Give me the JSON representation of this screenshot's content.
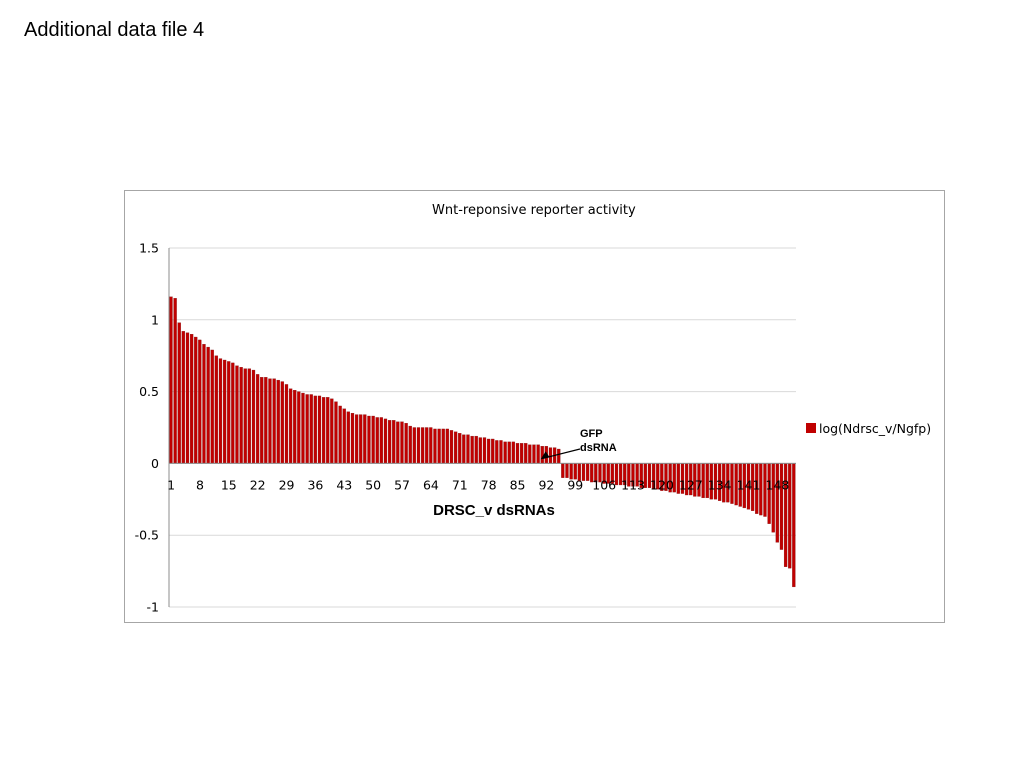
{
  "page": {
    "title": "Additional data file 4"
  },
  "colors": {
    "bar": "#c00000",
    "bar_edge": "#7f1a1a",
    "grid": "#d9d9d9",
    "frame": "#a6a6a6"
  },
  "chart_data": {
    "type": "bar",
    "title": "Wnt-reponsive reporter activity",
    "xlabel": "DRSC_v dsRNAs",
    "ylabel": "",
    "ylim": [
      -1,
      1.5
    ],
    "yticks": [
      1.5,
      1,
      0.5,
      0,
      -0.5,
      -1
    ],
    "grid": true,
    "legend_position": "right",
    "xtick_labels": [
      "1",
      "8",
      "15",
      "22",
      "29",
      "36",
      "43",
      "50",
      "57",
      "64",
      "71",
      "78",
      "85",
      "92",
      "99",
      "106",
      "113",
      "120",
      "127",
      "134",
      "141",
      "148"
    ],
    "annotation": {
      "text": [
        "GFP",
        "dsRNA"
      ],
      "target_index": 89
    },
    "series": [
      {
        "name": "log(Ndrsc_v/Ngfp)",
        "values": [
          1.16,
          1.15,
          0.98,
          0.92,
          0.91,
          0.9,
          0.88,
          0.86,
          0.83,
          0.81,
          0.79,
          0.75,
          0.73,
          0.72,
          0.71,
          0.7,
          0.68,
          0.67,
          0.66,
          0.66,
          0.65,
          0.62,
          0.6,
          0.6,
          0.59,
          0.59,
          0.58,
          0.57,
          0.55,
          0.52,
          0.51,
          0.5,
          0.49,
          0.48,
          0.48,
          0.47,
          0.47,
          0.46,
          0.46,
          0.45,
          0.43,
          0.4,
          0.38,
          0.36,
          0.35,
          0.34,
          0.34,
          0.34,
          0.33,
          0.33,
          0.32,
          0.32,
          0.31,
          0.3,
          0.3,
          0.29,
          0.29,
          0.28,
          0.26,
          0.25,
          0.25,
          0.25,
          0.25,
          0.25,
          0.24,
          0.24,
          0.24,
          0.24,
          0.23,
          0.22,
          0.21,
          0.2,
          0.2,
          0.19,
          0.19,
          0.18,
          0.18,
          0.17,
          0.17,
          0.16,
          0.16,
          0.15,
          0.15,
          0.15,
          0.14,
          0.14,
          0.14,
          0.13,
          0.13,
          0.13,
          0.12,
          0.12,
          0.11,
          0.11,
          0.1,
          -0.1,
          -0.1,
          -0.11,
          -0.11,
          -0.12,
          -0.12,
          -0.12,
          -0.13,
          -0.13,
          -0.13,
          -0.14,
          -0.14,
          -0.14,
          -0.15,
          -0.15,
          -0.15,
          -0.16,
          -0.16,
          -0.16,
          -0.17,
          -0.17,
          -0.17,
          -0.18,
          -0.18,
          -0.19,
          -0.19,
          -0.2,
          -0.2,
          -0.21,
          -0.21,
          -0.22,
          -0.22,
          -0.23,
          -0.23,
          -0.24,
          -0.24,
          -0.25,
          -0.25,
          -0.26,
          -0.27,
          -0.27,
          -0.28,
          -0.29,
          -0.3,
          -0.31,
          -0.32,
          -0.33,
          -0.35,
          -0.36,
          -0.37,
          -0.42,
          -0.48,
          -0.55,
          -0.6,
          -0.72,
          -0.73,
          -0.86
        ]
      }
    ]
  }
}
